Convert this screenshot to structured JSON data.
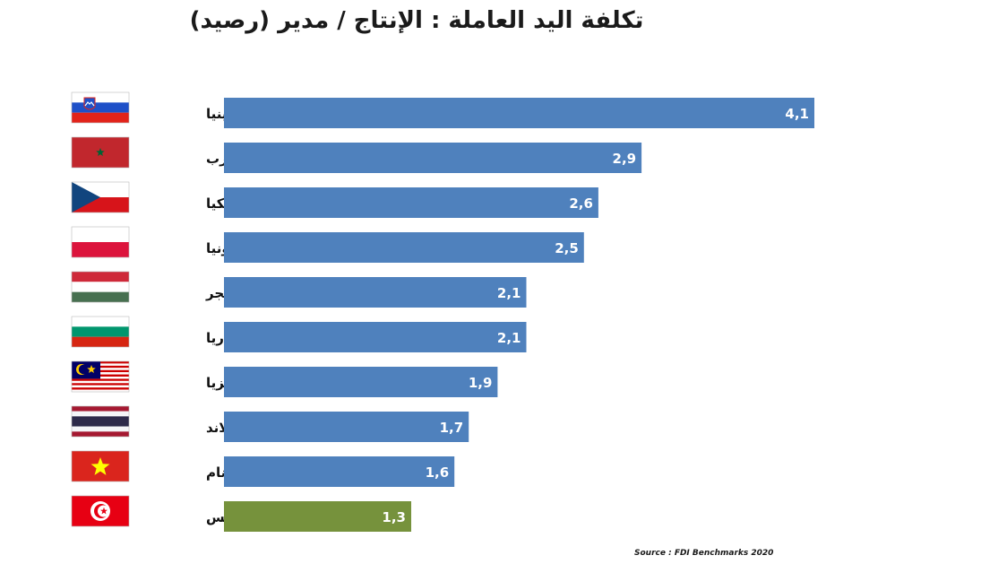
{
  "title": "تكلفة اليد العاملة : الإنتاج / مدير (رصيد)",
  "source": "Source : FDI Benchmarks 2020",
  "colors": {
    "default_bar": "#4f81bd",
    "highlight_bar": "#76923c",
    "value_text": "#ffffff",
    "label_text": "#111111"
  },
  "chart_data": {
    "type": "bar",
    "orientation": "horizontal",
    "title": "تكلفة اليد العاملة : الإنتاج / مدير (رصيد)",
    "xlabel": "",
    "ylabel": "",
    "grid": false,
    "xlim": [
      0,
      4.1
    ],
    "categories": [
      "سلوفينيا",
      "المغرب",
      "تشيكيا",
      "بولونيا",
      "المجر",
      "بلغاريا",
      "ماليزيا",
      "تايلاند",
      "فيتنام",
      "تونس"
    ],
    "values": [
      4.1,
      2.9,
      2.6,
      2.5,
      2.1,
      2.1,
      1.9,
      1.7,
      1.6,
      1.3
    ],
    "value_labels": [
      "4,1",
      "2,9",
      "2,6",
      "2,5",
      "2,1",
      "2,1",
      "1,9",
      "1,7",
      "1,6",
      "1,3"
    ],
    "highlight": "تونس",
    "flags": [
      "slovenia-flag-icon",
      "morocco-flag-icon",
      "czechia-flag-icon",
      "poland-flag-icon",
      "hungary-flag-icon",
      "bulgaria-flag-icon",
      "malaysia-flag-icon",
      "thailand-flag-icon",
      "vietnam-flag-icon",
      "tunisia-flag-icon"
    ]
  }
}
